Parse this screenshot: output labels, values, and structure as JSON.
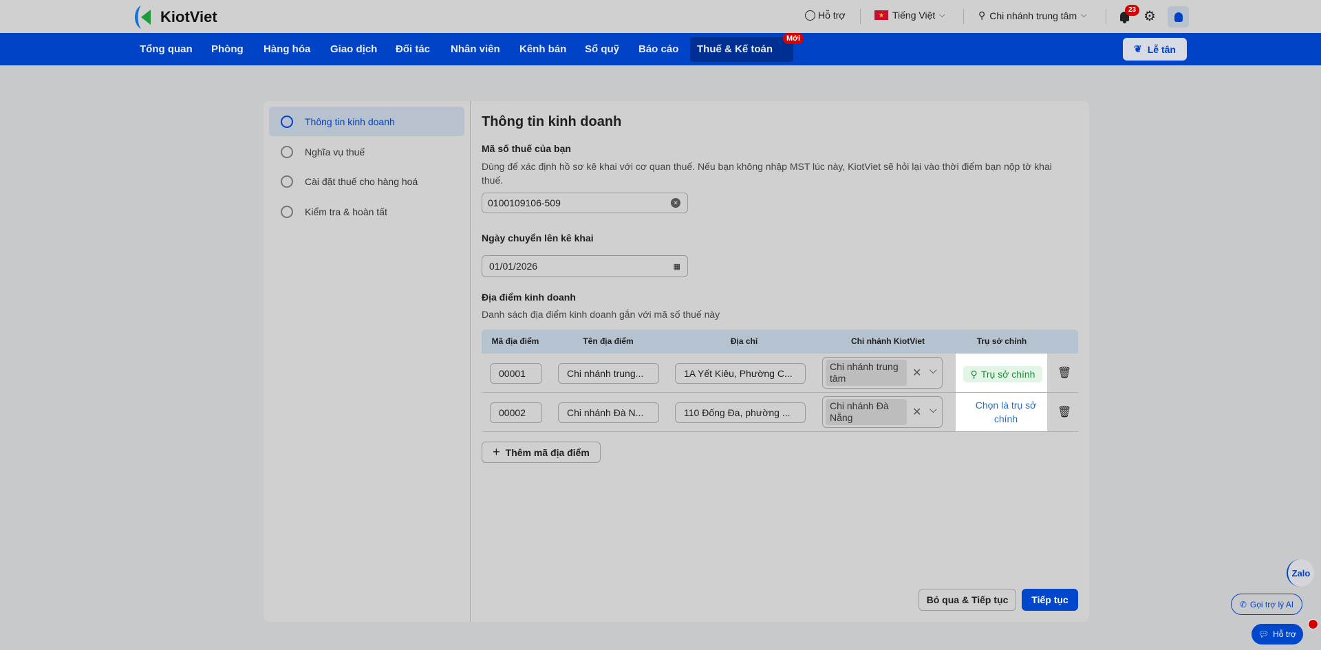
{
  "header": {
    "logo": "KiotViet",
    "support": "Hỗ trợ",
    "language": "Tiếng Việt",
    "branch": "Chi nhánh trung tâm",
    "notifications": "23"
  },
  "nav": {
    "items": [
      "Tổng quan",
      "Phòng",
      "Hàng hóa",
      "Giao dịch",
      "Đối tác",
      "Nhân viên",
      "Kênh bán",
      "Sổ quỹ",
      "Báo cáo"
    ],
    "active": "Thuế & Kế toán",
    "new_badge": "Mới",
    "reception": "Lễ tân"
  },
  "sidebar": {
    "items": [
      "Thông tin kinh doanh",
      "Nghĩa vụ thuế",
      "Cài đặt thuế cho hàng hoá",
      "Kiểm tra & hoàn tất"
    ]
  },
  "main": {
    "title": "Thông tin kinh doanh",
    "tax_label": "Mã số thuế của bạn",
    "tax_desc": "Dùng để xác định hồ sơ kê khai với cơ quan thuế. Nếu bạn không nhập MST lúc này, KiotViet sẽ hỏi lại vào thời điểm bạn nộp tờ khai thuế.",
    "tax_value": "0100109106-509",
    "date_label": "Ngày chuyển lên kê khai",
    "date_value": "01/01/2026",
    "loc_label": "Địa điểm kinh doanh",
    "loc_desc": "Danh sách địa điểm kinh doanh gắn với mã số thuế này",
    "columns": [
      "Mã địa điểm",
      "Tên địa điểm",
      "Địa chỉ",
      "Chi nhánh KiotViet",
      "Trụ sở chính"
    ],
    "rows": [
      {
        "code": "00001",
        "name": "Chi nhánh trung...",
        "address": "1A Yết Kiêu, Phường C...",
        "branch": "Chi nhánh trung tâm",
        "hq": "Trụ sở chính"
      },
      {
        "code": "00002",
        "name": "Chi nhánh Đà N...",
        "address": "110 Đống Đa, phường ...",
        "branch": "Chi nhánh Đà Nẵng",
        "hq": "Chọn là trụ sở chính"
      }
    ],
    "add_button": "Thêm mã địa điểm",
    "skip_button": "Bỏ qua & Tiếp tục",
    "continue_button": "Tiếp tục"
  },
  "floating": {
    "zalo": "Zalo",
    "ai": "Gọi trợ lý AI",
    "support": "Hỗ trợ"
  },
  "colors": {
    "primary": "#0043c6",
    "hq_green": "#1a8a3a",
    "badge_red": "#d70000"
  }
}
